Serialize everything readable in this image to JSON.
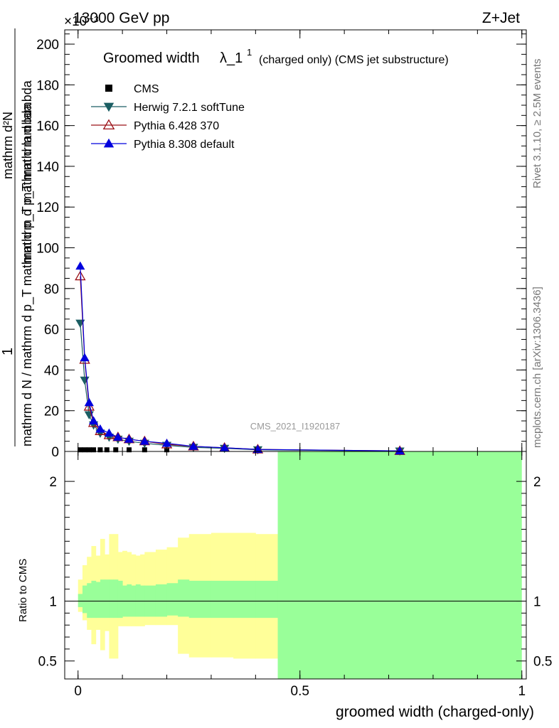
{
  "header": {
    "left": "13000 GeV pp",
    "right": "Z+Jet",
    "exponent": "×10⁻³"
  },
  "side_labels": {
    "rivet": "Rivet 3.1.10, ≥ 2.5M events",
    "mcplots": "mcplots.cern.ch [arXiv:1306.3436]"
  },
  "watermark": "CMS_2021_I1920187",
  "title": {
    "main": "Groomed width",
    "lambda": "λ_1",
    "sup": "1",
    "sub": "(charged only) (CMS jet substructure)"
  },
  "ylabel_main": {
    "numerator": "1",
    "denominator": "mathrm d N / mathrm d p_T mathrm d p_T mathrm d lambda",
    "top_num": "mathrm d²N",
    "top_den": "mathrm d p_T mathrm d lambda"
  },
  "ylabel_ratio": "Ratio to CMS",
  "xlabel": "groomed width (charged-only)",
  "legend": [
    {
      "name": "CMS",
      "color": "#000000",
      "marker": "square"
    },
    {
      "name": "Herwig 7.2.1 softTune",
      "color": "#1b5e63",
      "marker": "tri-down"
    },
    {
      "name": "Pythia 6.428 370",
      "color": "#9b1016",
      "marker": "tri-open"
    },
    {
      "name": "Pythia 8.308 default",
      "color": "#0000dd",
      "marker": "tri-up"
    }
  ],
  "chart_data": {
    "type": "line",
    "xlim": [
      -0.03,
      1.01
    ],
    "ylim_main": [
      0,
      207
    ],
    "ylim_ratio": [
      0.35,
      2.25
    ],
    "x_ticks": [
      "0",
      "0.5",
      "1"
    ],
    "x_tick_values": [
      0,
      0.5,
      1
    ],
    "y_ticks_main": [
      "0",
      "20",
      "40",
      "60",
      "80",
      "100",
      "120",
      "140",
      "160",
      "180",
      "200"
    ],
    "y_ticks_main_values": [
      0,
      20,
      40,
      60,
      80,
      100,
      120,
      140,
      160,
      180,
      200
    ],
    "y_ticks_ratio": [
      "0.5",
      "1",
      "2"
    ],
    "y_ticks_ratio_values": [
      0.5,
      1,
      2
    ],
    "x": [
      0.005,
      0.015,
      0.025,
      0.035,
      0.05,
      0.07,
      0.09,
      0.115,
      0.15,
      0.2,
      0.26,
      0.33,
      0.405,
      0.725
    ],
    "series": [
      {
        "name": "CMS",
        "values": [
          0.8,
          0.8,
          0.8,
          0.8,
          0.8,
          0.8,
          0.8,
          0.8,
          0.8,
          0.8,
          0.8,
          0.8,
          0.8,
          0.8
        ]
      },
      {
        "name": "Herwig 7.2.1 softTune",
        "values": [
          63,
          35,
          18,
          13,
          9,
          7,
          6,
          5,
          4,
          3,
          2,
          1.5,
          0.8,
          0.2
        ]
      },
      {
        "name": "Pythia 6.428 370",
        "values": [
          86,
          45,
          22,
          14,
          10,
          8,
          7,
          6,
          5,
          3.5,
          2.5,
          1.8,
          1.0,
          0.25
        ]
      },
      {
        "name": "Pythia 8.308 default",
        "values": [
          91,
          46,
          24,
          15,
          11,
          9,
          7,
          6,
          5,
          4,
          2.5,
          1.8,
          1.0,
          0.25
        ]
      }
    ],
    "cms_x": [
      0.005,
      0.015,
      0.025,
      0.035,
      0.05,
      0.065,
      0.085,
      0.115,
      0.15,
      0.2
    ],
    "ratio_bins": [
      0,
      0.01,
      0.02,
      0.03,
      0.04,
      0.05,
      0.06,
      0.07,
      0.08,
      0.09,
      0.1,
      0.11,
      0.12,
      0.13,
      0.14,
      0.15,
      0.175,
      0.2,
      0.225,
      0.25,
      0.3,
      0.35,
      0.4,
      0.45,
      1.0
    ],
    "band_yellow": [
      [
        0.91,
        1.18
      ],
      [
        0.84,
        1.3
      ],
      [
        0.76,
        1.37
      ],
      [
        0.64,
        1.46
      ],
      [
        0.76,
        1.38
      ],
      [
        0.59,
        1.52
      ],
      [
        0.75,
        1.39
      ],
      [
        0.52,
        1.56
      ],
      [
        0.52,
        1.56
      ],
      [
        0.79,
        1.41
      ],
      [
        0.79,
        1.42
      ],
      [
        0.79,
        1.41
      ],
      [
        0.79,
        1.39
      ],
      [
        0.79,
        1.38
      ],
      [
        0.79,
        1.39
      ],
      [
        0.8,
        1.41
      ],
      [
        0.8,
        1.43
      ],
      [
        0.8,
        1.45
      ],
      [
        0.56,
        1.53
      ],
      [
        0.53,
        1.56
      ],
      [
        0.53,
        1.57
      ],
      [
        0.52,
        1.57
      ],
      [
        0.52,
        1.56
      ]
    ],
    "band_green": [
      [
        0.95,
        1.06
      ],
      [
        0.9,
        1.13
      ],
      [
        0.86,
        1.15
      ],
      [
        0.86,
        1.17
      ],
      [
        0.86,
        1.16
      ],
      [
        0.86,
        1.18
      ],
      [
        0.86,
        1.18
      ],
      [
        0.86,
        1.18
      ],
      [
        0.86,
        1.18
      ],
      [
        0.86,
        1.17
      ],
      [
        0.87,
        1.13
      ],
      [
        0.87,
        1.14
      ],
      [
        0.87,
        1.13
      ],
      [
        0.87,
        1.14
      ],
      [
        0.87,
        1.13
      ],
      [
        0.87,
        1.13
      ],
      [
        0.87,
        1.14
      ],
      [
        0.88,
        1.15
      ],
      [
        0.87,
        1.18
      ],
      [
        0.86,
        1.17
      ],
      [
        0.86,
        1.17
      ],
      [
        0.86,
        1.17
      ],
      [
        0.86,
        1.17
      ]
    ],
    "band_green_last": [
      0.35,
      2.25
    ]
  }
}
